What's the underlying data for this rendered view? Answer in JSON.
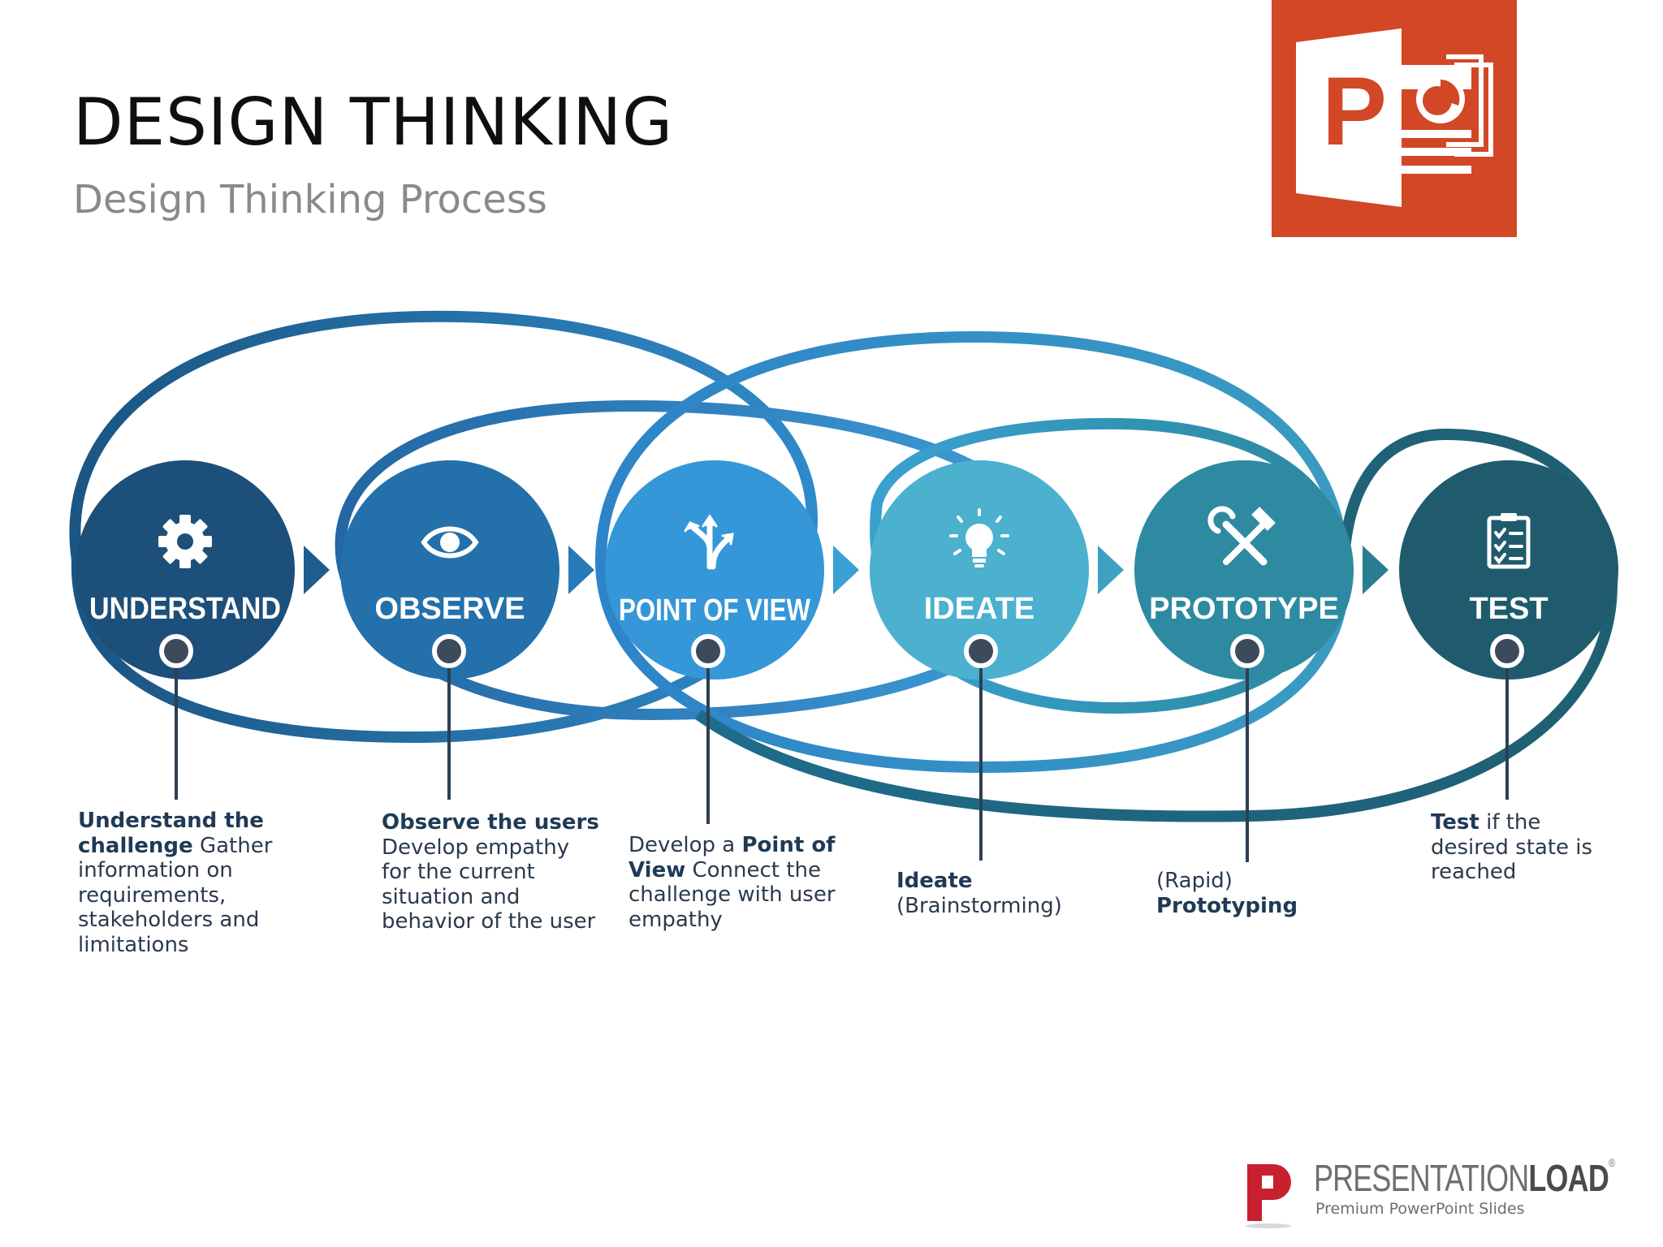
{
  "header": {
    "title": "DESIGN THINKING",
    "subtitle": "Design Thinking Process"
  },
  "ppt_logo": {
    "letter": "P",
    "color": "#d24726"
  },
  "steps": [
    {
      "label": "UNDERSTAND",
      "icon": "gear-icon",
      "color": "#1c4f7a",
      "desc": {
        "pre": "",
        "bold": "Understand the challenge",
        "post": " Gather information on requirements, stakeholders and limitations"
      }
    },
    {
      "label": "OBSERVE",
      "icon": "eye-icon",
      "color": "#2470ab",
      "desc": {
        "pre": "",
        "bold": "Observe the users",
        "post": " Develop empathy for the current situation and behavior of the user"
      }
    },
    {
      "label": "POINT OF VIEW",
      "icon": "split-arrows-icon",
      "color": "#3597d8",
      "desc": {
        "pre": "Develop a ",
        "bold": "Point of View",
        "post": " Connect the challenge with user empathy"
      }
    },
    {
      "label": "IDEATE",
      "icon": "lightbulb-icon",
      "color": "#4cb0cf",
      "desc": {
        "pre": "",
        "bold": "Ideate",
        "post": " (Brainstorming)"
      }
    },
    {
      "label": "PROTOTYPE",
      "icon": "tools-icon",
      "color": "#2e8aa1",
      "desc": {
        "pre": "(Rapid) ",
        "bold": "Prototyping",
        "post": ""
      }
    },
    {
      "label": "TEST",
      "icon": "checklist-icon",
      "color": "#1f5b6d",
      "desc": {
        "pre": "",
        "bold": "Test",
        "post": " if the desired state is reached"
      }
    }
  ],
  "branding": {
    "name_light": "PRESENTATION",
    "name_bold": "LOAD",
    "reg": "®",
    "tagline": "Premium PowerPoint Slides",
    "logo_color": "#c8202f"
  }
}
